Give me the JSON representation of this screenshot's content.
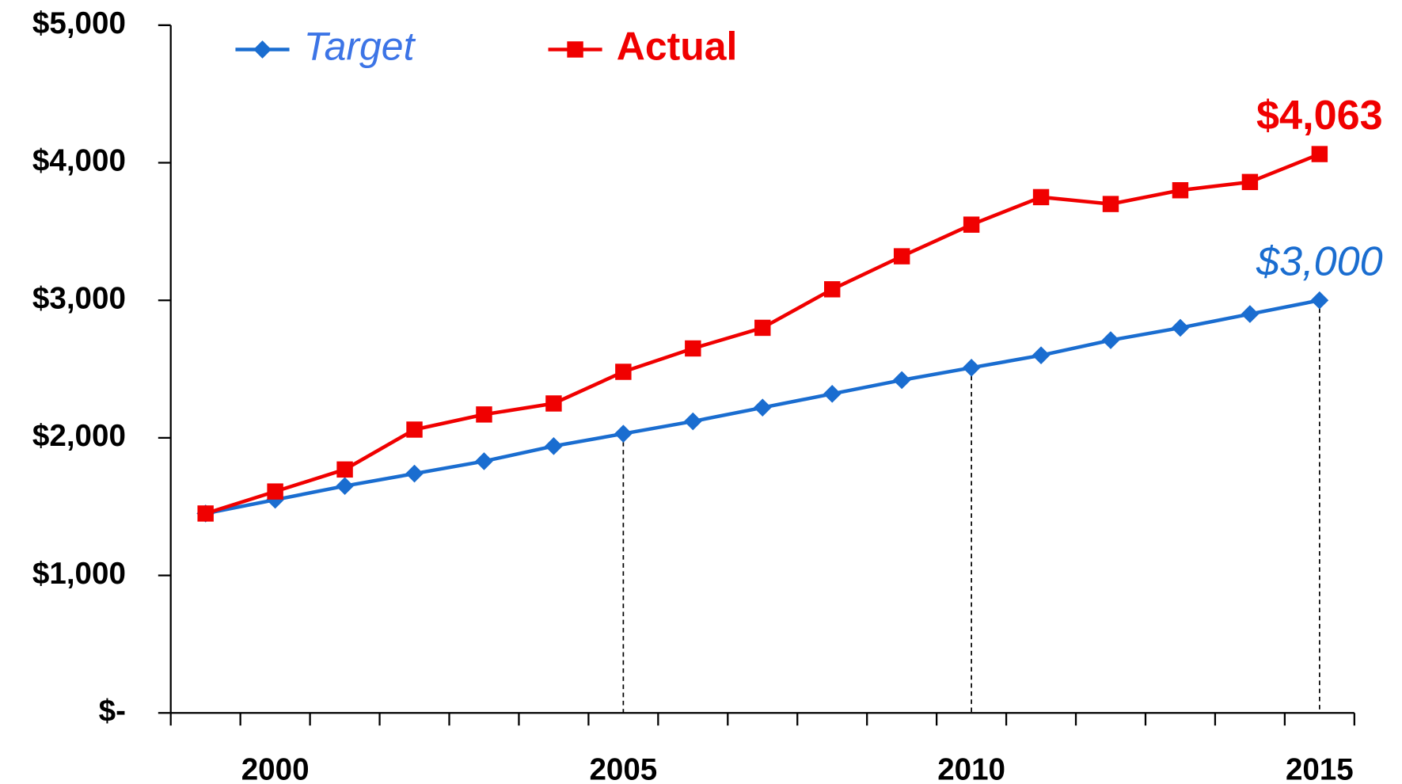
{
  "chart_data": {
    "type": "line",
    "categories": [
      null,
      "2000",
      null,
      null,
      null,
      null,
      "2005",
      null,
      null,
      null,
      null,
      "2010",
      null,
      null,
      null,
      null,
      "2015"
    ],
    "series": [
      {
        "name": "Target",
        "color": "#1a6dd0",
        "marker": "diamond",
        "values": [
          1450,
          1550,
          1650,
          1740,
          1830,
          1940,
          2030,
          2120,
          2220,
          2320,
          2420,
          2510,
          2600,
          2710,
          2800,
          2900,
          3000
        ],
        "value_labels": [
          null,
          null,
          null,
          null,
          null,
          null,
          null,
          null,
          null,
          null,
          null,
          null,
          null,
          null,
          null,
          null,
          "$3,000"
        ]
      },
      {
        "name": "Actual",
        "color": "#f00000",
        "marker": "square",
        "values": [
          1450,
          1610,
          1770,
          2060,
          2170,
          2250,
          2480,
          2650,
          2800,
          3080,
          3320,
          3550,
          3750,
          3700,
          3800,
          3860,
          4063
        ],
        "value_labels": [
          null,
          null,
          null,
          null,
          null,
          null,
          null,
          null,
          null,
          null,
          null,
          null,
          null,
          null,
          null,
          null,
          "$4,063"
        ]
      }
    ],
    "ylim": [
      0,
      5000
    ],
    "yticks": [
      {
        "value": 0,
        "label": "$-"
      },
      {
        "value": 1000,
        "label": "$1,000"
      },
      {
        "value": 2000,
        "label": "$2,000"
      },
      {
        "value": 3000,
        "label": "$3,000"
      },
      {
        "value": 4000,
        "label": "$4,000"
      },
      {
        "value": 5000,
        "label": "$5,000"
      }
    ],
    "grid": false,
    "legend": "top"
  }
}
